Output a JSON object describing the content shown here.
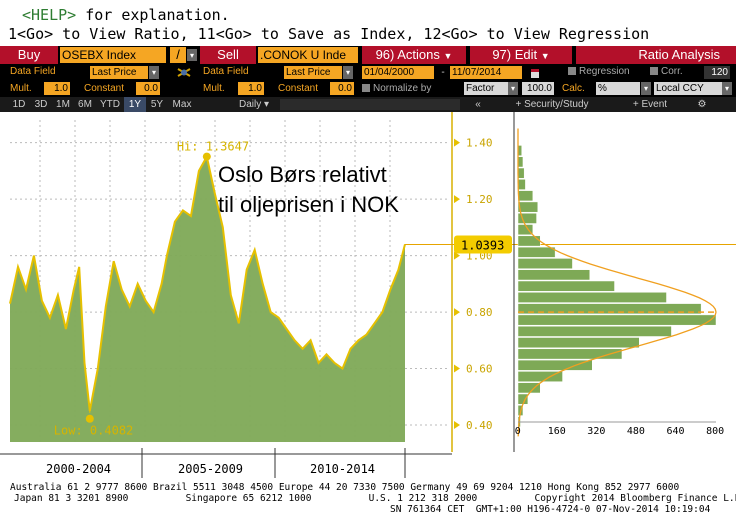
{
  "help": {
    "line1_key": "<HELP>",
    "line1_rest": " for explanation.",
    "line2": "1<Go> to View Ratio, 11<Go> to Save as Index, 12<Go> to View Regression"
  },
  "toolbar1": {
    "buy": "Buy",
    "sec1": "OSEBX Index",
    "op": "/",
    "sell": "Sell",
    "sec2": ".CONOK U Inde",
    "actions": "96) Actions",
    "edit": "97) Edit",
    "title": "Ratio Analysis"
  },
  "toolbar2": {
    "data_field_label1": "Data Field",
    "data_field1": "Last Price",
    "data_field_label2": "Data Field",
    "data_field2": "Last Price",
    "start_date": "01/04/2000",
    "end_date": "11/07/2014",
    "regression": "Regression",
    "corr": "Corr.",
    "corr_value": "120"
  },
  "toolbar3": {
    "mult_label1": "Mult.",
    "mult1": "1.0",
    "const_label1": "Constant",
    "const1": "0.0",
    "mult_label2": "Mult.",
    "mult2": "1.0",
    "const_label2": "Constant",
    "const2": "0.0",
    "normalize": "Normalize by",
    "factor": "Factor",
    "factor_value": "100.0",
    "calc_label": "Calc.",
    "calc": "%",
    "ccy": "Local CCY"
  },
  "toolbar4": {
    "periods": [
      "1D",
      "3D",
      "1M",
      "6M",
      "YTD",
      "1Y",
      "5Y",
      "Max"
    ],
    "selected_period": "1Y",
    "frequency": "Daily",
    "collapse": "«",
    "security_study": "Security/Study",
    "event": "Event"
  },
  "chart_data": {
    "type": "area",
    "annotation": "Oslo Børs relativt til oljeprisen i NOK",
    "hi_label": "Hi: 1.3647",
    "low_label": "Low: 0.4082",
    "last_value": "1.0393",
    "hi": 1.3647,
    "low": 0.4082,
    "last": 1.0393,
    "x_labels": [
      "2000-2004",
      "2005-2009",
      "2010-2014"
    ],
    "y_ticks": [
      "1.40",
      "1.20",
      "1.00",
      "0.80",
      "0.60",
      "0.40"
    ],
    "ylim": [
      0.34,
      1.48
    ],
    "series": [
      {
        "color": "#e6c000",
        "fill": "#7ea956",
        "x": [
          2000.0,
          2000.3,
          2000.6,
          2000.9,
          2001.2,
          2001.5,
          2001.8,
          2002.1,
          2002.4,
          2002.6,
          2002.8,
          2003.0,
          2003.3,
          2003.6,
          2003.9,
          2004.2,
          2004.5,
          2004.8,
          2005.1,
          2005.4,
          2005.7,
          2005.9,
          2006.2,
          2006.5,
          2006.8,
          2007.1,
          2007.4,
          2007.7,
          2008.0,
          2008.3,
          2008.6,
          2008.9,
          2009.2,
          2009.5,
          2009.8,
          2010.1,
          2010.4,
          2010.7,
          2011.0,
          2011.3,
          2011.6,
          2011.9,
          2012.2,
          2012.5,
          2012.8,
          2013.1,
          2013.4,
          2013.7,
          2014.0,
          2014.3,
          2014.6,
          2014.85
        ],
        "values": [
          0.83,
          0.96,
          0.88,
          1.0,
          0.84,
          0.78,
          0.86,
          0.74,
          0.88,
          0.96,
          0.62,
          0.45,
          0.6,
          0.82,
          0.98,
          0.88,
          0.82,
          0.9,
          0.84,
          0.8,
          0.9,
          1.0,
          1.12,
          1.16,
          1.14,
          1.3,
          1.35,
          1.22,
          1.1,
          0.86,
          0.76,
          0.95,
          1.02,
          0.9,
          0.8,
          0.78,
          0.74,
          0.7,
          0.67,
          0.7,
          0.62,
          0.65,
          0.62,
          0.6,
          0.67,
          0.7,
          0.72,
          0.76,
          0.8,
          0.88,
          0.95,
          1.04
        ]
      }
    ],
    "histogram": {
      "type": "bar",
      "orientation": "horizontal",
      "x_ticks": [
        "0",
        "160",
        "320",
        "480",
        "640",
        "800"
      ],
      "xlim": [
        0,
        800
      ],
      "bin_centers": [
        1.37,
        1.33,
        1.29,
        1.25,
        1.21,
        1.17,
        1.13,
        1.09,
        1.05,
        1.01,
        0.97,
        0.93,
        0.89,
        0.85,
        0.81,
        0.77,
        0.73,
        0.69,
        0.65,
        0.61,
        0.57,
        0.53,
        0.49,
        0.45,
        0.41
      ],
      "counts": [
        15,
        20,
        25,
        30,
        60,
        80,
        75,
        60,
        90,
        150,
        220,
        290,
        390,
        600,
        740,
        800,
        620,
        490,
        420,
        300,
        180,
        90,
        40,
        20,
        10
      ]
    }
  }
}
